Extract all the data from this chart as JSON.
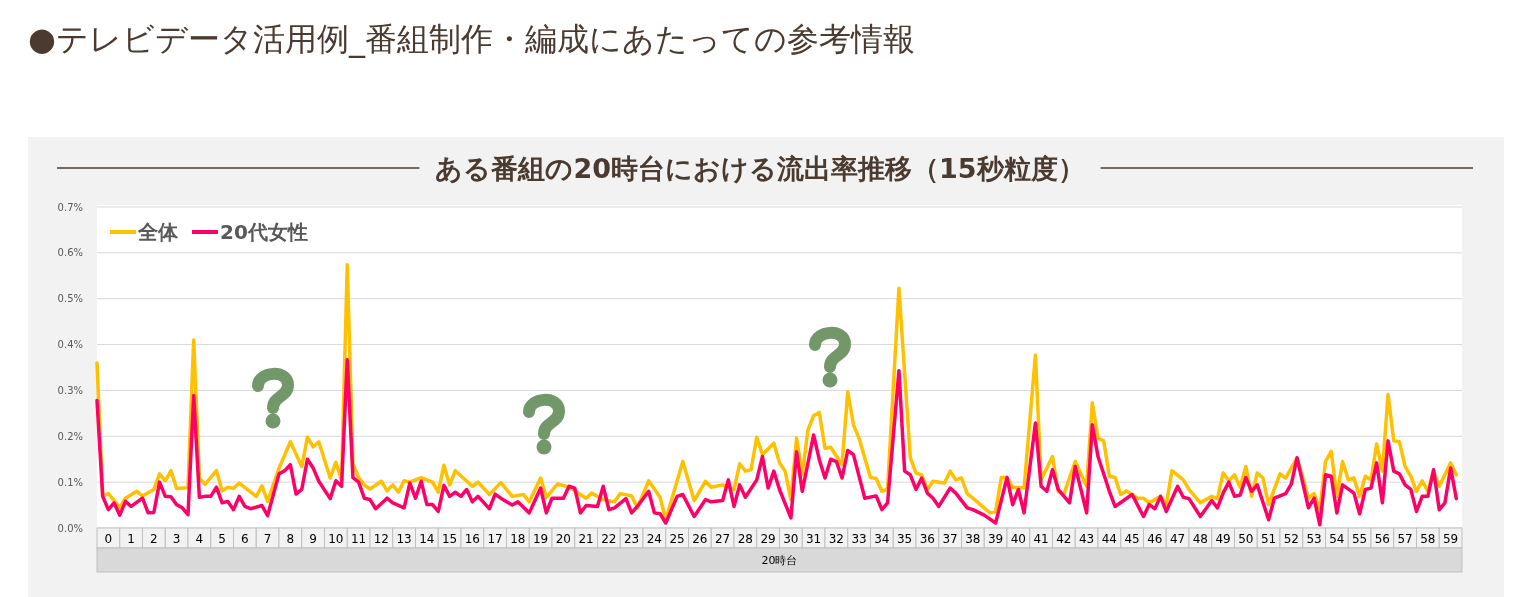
{
  "chart_data": {
    "type": "line",
    "title": "●テレビデータ活用例_番組制作・編成にあたっての参考情報",
    "subtitle": "ある番組の20時台における流出率推移（15秒粒度）",
    "xlabel": "20時台",
    "xlim": [
      0,
      60
    ],
    "xticks": [
      {
        "value": 0.5,
        "label": "0"
      },
      {
        "value": 1.5,
        "label": "1"
      },
      {
        "value": 2.5,
        "label": "2"
      },
      {
        "value": 3.5,
        "label": "3"
      },
      {
        "value": 4.5,
        "label": "4"
      },
      {
        "value": 5.5,
        "label": "5"
      },
      {
        "value": 6.5,
        "label": "6"
      },
      {
        "value": 7.5,
        "label": "7"
      },
      {
        "value": 8.5,
        "label": "8"
      },
      {
        "value": 9.5,
        "label": "9"
      },
      {
        "value": 10.5,
        "label": "10"
      },
      {
        "value": 11.5,
        "label": "11"
      },
      {
        "value": 12.5,
        "label": "12"
      },
      {
        "value": 13.5,
        "label": "13"
      },
      {
        "value": 14.5,
        "label": "14"
      },
      {
        "value": 15.5,
        "label": "15"
      },
      {
        "value": 16.5,
        "label": "16"
      },
      {
        "value": 17.5,
        "label": "17"
      },
      {
        "value": 18.5,
        "label": "18"
      },
      {
        "value": 19.5,
        "label": "19"
      },
      {
        "value": 20.5,
        "label": "20"
      },
      {
        "value": 21.5,
        "label": "21"
      },
      {
        "value": 22.5,
        "label": "22"
      },
      {
        "value": 23.5,
        "label": "23"
      },
      {
        "value": 24.5,
        "label": "24"
      },
      {
        "value": 25.5,
        "label": "25"
      },
      {
        "value": 26.5,
        "label": "26"
      },
      {
        "value": 27.5,
        "label": "27"
      },
      {
        "value": 28.5,
        "label": "28"
      },
      {
        "value": 29.5,
        "label": "29"
      },
      {
        "value": 30.5,
        "label": "30"
      },
      {
        "value": 31.5,
        "label": "31"
      },
      {
        "value": 32.5,
        "label": "32"
      },
      {
        "value": 33.5,
        "label": "33"
      },
      {
        "value": 34.5,
        "label": "34"
      },
      {
        "value": 35.5,
        "label": "35"
      },
      {
        "value": 36.5,
        "label": "36"
      },
      {
        "value": 37.5,
        "label": "37"
      },
      {
        "value": 38.5,
        "label": "38"
      },
      {
        "value": 39.5,
        "label": "39"
      },
      {
        "value": 40.5,
        "label": "40"
      },
      {
        "value": 41.5,
        "label": "41"
      },
      {
        "value": 42.5,
        "label": "42"
      },
      {
        "value": 43.5,
        "label": "43"
      },
      {
        "value": 44.5,
        "label": "44"
      },
      {
        "value": 45.5,
        "label": "45"
      },
      {
        "value": 46.5,
        "label": "46"
      },
      {
        "value": 47.5,
        "label": "47"
      },
      {
        "value": 48.5,
        "label": "48"
      },
      {
        "value": 49.5,
        "label": "49"
      },
      {
        "value": 50.5,
        "label": "50"
      },
      {
        "value": 51.5,
        "label": "51"
      },
      {
        "value": 52.5,
        "label": "52"
      },
      {
        "value": 53.5,
        "label": "53"
      },
      {
        "value": 54.5,
        "label": "54"
      },
      {
        "value": 55.5,
        "label": "55"
      },
      {
        "value": 56.5,
        "label": "56"
      },
      {
        "value": 57.5,
        "label": "57"
      },
      {
        "value": 58.5,
        "label": "58"
      },
      {
        "value": 59.5,
        "label": "59"
      }
    ],
    "ylim": [
      0,
      0.7
    ],
    "yticks": [
      {
        "value": 0,
        "label": "0.0%"
      },
      {
        "value": 0.1,
        "label": "0.1%"
      },
      {
        "value": 0.2,
        "label": "0.2%"
      },
      {
        "value": 0.3,
        "label": "0.3%"
      },
      {
        "value": 0.4,
        "label": "0.4%"
      },
      {
        "value": 0.5,
        "label": "0.5%"
      },
      {
        "value": 0.6,
        "label": "0.6%"
      },
      {
        "value": 0.7,
        "label": "0.7%"
      }
    ],
    "grid": "y",
    "legend": "top left",
    "line_style": "solid",
    "series": [
      {
        "name": "全体",
        "color": "#ffc000",
        "x": [
          0,
          0.25,
          0.5,
          1.0,
          1.25,
          1.75,
          2.0,
          2.5,
          2.75,
          3.0,
          3.25,
          3.5,
          4.0,
          4.25,
          4.5,
          4.75,
          5.25,
          5.5,
          5.75,
          6.0,
          6.25,
          7.0,
          7.25,
          7.5,
          8.0,
          8.5,
          9.0,
          9.25,
          9.5,
          9.75,
          10.25,
          10.5,
          10.75,
          11.0,
          11.25,
          11.5,
          11.75,
          12.0,
          12.5,
          12.75,
          13.0,
          13.25,
          13.5,
          13.75,
          14.25,
          14.75,
          15.0,
          15.25,
          15.5,
          15.75,
          16.5,
          16.75,
          17.25,
          17.75,
          18.25,
          18.75,
          19.0,
          19.5,
          19.75,
          20.25,
          20.75,
          21.5,
          21.75,
          22.25,
          22.75,
          23.0,
          23.5,
          23.75,
          24.25,
          24.75,
          25.0,
          25.75,
          26.25,
          26.75,
          27.0,
          27.5,
          28.0,
          28.25,
          28.5,
          28.75,
          29.0,
          29.25,
          29.75,
          30.0,
          30.25,
          30.5,
          30.75,
          31.0,
          31.25,
          31.5,
          31.75,
          32.0,
          32.25,
          32.75,
          33.0,
          33.25,
          33.5,
          34.0,
          34.25,
          34.5,
          34.75,
          35.25,
          35.75,
          36.0,
          36.25,
          36.5,
          36.75,
          37.25,
          37.5,
          37.75,
          38.0,
          38.25,
          38.5,
          39.25,
          39.5,
          39.75,
          40.0,
          40.25,
          40.75,
          41.25,
          41.5,
          42.0,
          42.25,
          42.5,
          43.0,
          43.5,
          43.75,
          44.0,
          44.25,
          44.5,
          44.75,
          45.0,
          45.25,
          45.75,
          46.0,
          46.25,
          46.75,
          47.0,
          47.25,
          47.75,
          48.0,
          48.5,
          49.0,
          49.25,
          49.5,
          49.75,
          50.0,
          50.25,
          50.5,
          50.75,
          51.0,
          51.25,
          51.5,
          52.0,
          52.25,
          52.75,
          53.25,
          53.5,
          53.75,
          54.0,
          54.25,
          54.5,
          54.75,
          55.0,
          55.25,
          55.5,
          55.75,
          56.0,
          56.25,
          56.5,
          56.75,
          57.0,
          57.25,
          57.5,
          57.75,
          58.0,
          58.25,
          58.5,
          58.75,
          59.0,
          59.5,
          59.75
        ],
        "values": [
          0.36,
          0.07,
          0.075,
          0.045,
          0.065,
          0.08,
          0.07,
          0.084,
          0.118,
          0.103,
          0.125,
          0.086,
          0.088,
          0.41,
          0.109,
          0.095,
          0.125,
          0.081,
          0.089,
          0.086,
          0.098,
          0.069,
          0.092,
          0.058,
          0.13,
          0.188,
          0.134,
          0.198,
          0.177,
          0.188,
          0.109,
          0.143,
          0.103,
          0.574,
          0.14,
          0.11,
          0.094,
          0.085,
          0.102,
          0.081,
          0.094,
          0.078,
          0.103,
          0.1,
          0.11,
          0.1,
          0.078,
          0.137,
          0.094,
          0.125,
          0.091,
          0.1,
          0.073,
          0.099,
          0.069,
          0.073,
          0.057,
          0.109,
          0.067,
          0.096,
          0.089,
          0.065,
          0.076,
          0.062,
          0.057,
          0.075,
          0.07,
          0.044,
          0.103,
          0.067,
          0.018,
          0.145,
          0.06,
          0.102,
          0.089,
          0.094,
          0.084,
          0.14,
          0.124,
          0.127,
          0.198,
          0.16,
          0.185,
          0.142,
          0.124,
          0.062,
          0.196,
          0.116,
          0.214,
          0.245,
          0.252,
          0.174,
          0.176,
          0.138,
          0.297,
          0.225,
          0.195,
          0.11,
          0.108,
          0.08,
          0.085,
          0.523,
          0.153,
          0.12,
          0.116,
          0.084,
          0.102,
          0.098,
          0.124,
          0.105,
          0.109,
          0.075,
          0.065,
          0.033,
          0.036,
          0.11,
          0.11,
          0.089,
          0.087,
          0.377,
          0.105,
          0.156,
          0.08,
          0.074,
          0.145,
          0.091,
          0.273,
          0.196,
          0.19,
          0.113,
          0.11,
          0.073,
          0.081,
          0.065,
          0.065,
          0.055,
          0.069,
          0.051,
          0.125,
          0.105,
          0.084,
          0.055,
          0.069,
          0.064,
          0.12,
          0.103,
          0.116,
          0.089,
          0.134,
          0.069,
          0.12,
          0.109,
          0.051,
          0.118,
          0.109,
          0.153,
          0.065,
          0.075,
          0.04,
          0.145,
          0.167,
          0.069,
          0.145,
          0.105,
          0.109,
          0.069,
          0.113,
          0.105,
          0.183,
          0.124,
          0.291,
          0.19,
          0.188,
          0.134,
          0.113,
          0.08,
          0.103,
          0.08,
          0.124,
          0.091,
          0.142,
          0.116
        ]
      },
      {
        "name": "20代女性",
        "color": "#ff0066",
        "x": [
          0,
          0.25,
          0.5,
          0.75,
          1.0,
          1.25,
          1.5,
          2.0,
          2.25,
          2.5,
          2.75,
          3.0,
          3.25,
          3.5,
          3.75,
          4.0,
          4.25,
          4.5,
          4.75,
          5.0,
          5.25,
          5.5,
          5.75,
          6.0,
          6.25,
          6.5,
          6.75,
          7.25,
          7.5,
          8.0,
          8.25,
          8.5,
          8.75,
          9.0,
          9.25,
          9.5,
          9.75,
          10.25,
          10.5,
          10.75,
          11.0,
          11.25,
          11.5,
          11.75,
          12.0,
          12.25,
          12.75,
          13.0,
          13.5,
          13.75,
          14.0,
          14.25,
          14.5,
          14.75,
          15.0,
          15.25,
          15.5,
          15.75,
          16.0,
          16.25,
          16.5,
          16.75,
          17.25,
          17.5,
          17.75,
          18.25,
          18.5,
          19.0,
          19.5,
          19.75,
          20.0,
          20.5,
          20.75,
          21.0,
          21.25,
          21.5,
          22.0,
          22.25,
          22.5,
          22.75,
          23.25,
          23.5,
          23.75,
          24.25,
          24.5,
          24.75,
          25.0,
          25.5,
          25.75,
          26.25,
          26.75,
          27.0,
          27.5,
          27.75,
          28.0,
          28.25,
          28.5,
          29.0,
          29.25,
          29.5,
          29.75,
          30.0,
          30.5,
          30.75,
          31.0,
          31.5,
          31.75,
          32.0,
          32.25,
          32.5,
          32.75,
          33.0,
          33.25,
          33.75,
          34.25,
          34.5,
          34.75,
          35.25,
          35.5,
          35.75,
          36.0,
          36.25,
          36.5,
          36.75,
          37.0,
          37.5,
          37.75,
          38.25,
          38.5,
          39.0,
          39.5,
          40.0,
          40.25,
          40.5,
          40.75,
          41.25,
          41.5,
          41.75,
          42.0,
          42.25,
          42.75,
          43.0,
          43.25,
          43.5,
          43.75,
          44.0,
          44.5,
          44.75,
          45.5,
          46.0,
          46.25,
          46.5,
          46.75,
          47.0,
          47.5,
          47.75,
          48.0,
          48.5,
          49.0,
          49.25,
          49.5,
          49.75,
          50.0,
          50.25,
          50.5,
          50.75,
          51.0,
          51.5,
          51.75,
          52.0,
          52.25,
          52.5,
          52.75,
          53.25,
          53.5,
          53.75,
          54.0,
          54.25,
          54.5,
          54.75,
          55.25,
          55.5,
          55.75,
          56.0,
          56.25,
          56.5,
          56.75,
          57.0,
          57.25,
          57.5,
          57.75,
          58.0,
          58.25,
          58.5,
          58.75,
          59.0,
          59.25,
          59.5,
          59.75
        ],
        "values": [
          0.278,
          0.069,
          0.04,
          0.055,
          0.028,
          0.058,
          0.047,
          0.065,
          0.033,
          0.034,
          0.1,
          0.069,
          0.068,
          0.051,
          0.044,
          0.029,
          0.289,
          0.067,
          0.069,
          0.069,
          0.089,
          0.055,
          0.058,
          0.04,
          0.069,
          0.047,
          0.042,
          0.049,
          0.027,
          0.118,
          0.125,
          0.138,
          0.074,
          0.084,
          0.15,
          0.131,
          0.102,
          0.064,
          0.103,
          0.091,
          0.367,
          0.11,
          0.1,
          0.065,
          0.062,
          0.042,
          0.065,
          0.055,
          0.044,
          0.098,
          0.065,
          0.102,
          0.051,
          0.051,
          0.036,
          0.093,
          0.069,
          0.078,
          0.069,
          0.084,
          0.057,
          0.069,
          0.042,
          0.074,
          0.065,
          0.05,
          0.057,
          0.033,
          0.087,
          0.033,
          0.065,
          0.065,
          0.091,
          0.087,
          0.033,
          0.049,
          0.047,
          0.091,
          0.04,
          0.044,
          0.064,
          0.033,
          0.047,
          0.08,
          0.033,
          0.031,
          0.011,
          0.069,
          0.073,
          0.025,
          0.062,
          0.057,
          0.06,
          0.105,
          0.047,
          0.094,
          0.067,
          0.105,
          0.156,
          0.087,
          0.124,
          0.084,
          0.022,
          0.166,
          0.08,
          0.203,
          0.149,
          0.109,
          0.15,
          0.145,
          0.109,
          0.169,
          0.16,
          0.065,
          0.07,
          0.04,
          0.055,
          0.343,
          0.124,
          0.116,
          0.084,
          0.109,
          0.076,
          0.065,
          0.047,
          0.087,
          0.076,
          0.044,
          0.04,
          0.028,
          0.011,
          0.11,
          0.051,
          0.084,
          0.033,
          0.229,
          0.091,
          0.08,
          0.127,
          0.084,
          0.055,
          0.134,
          0.084,
          0.033,
          0.225,
          0.156,
          0.08,
          0.047,
          0.073,
          0.025,
          0.051,
          0.042,
          0.069,
          0.036,
          0.091,
          0.067,
          0.064,
          0.025,
          0.06,
          0.044,
          0.076,
          0.1,
          0.069,
          0.072,
          0.11,
          0.08,
          0.094,
          0.018,
          0.065,
          0.07,
          0.075,
          0.096,
          0.153,
          0.044,
          0.065,
          0.007,
          0.116,
          0.113,
          0.033,
          0.094,
          0.076,
          0.031,
          0.084,
          0.087,
          0.142,
          0.055,
          0.19,
          0.124,
          0.118,
          0.094,
          0.084,
          0.036,
          0.069,
          0.069,
          0.127,
          0.04,
          0.055,
          0.131,
          0.064
        ]
      }
    ]
  }
}
